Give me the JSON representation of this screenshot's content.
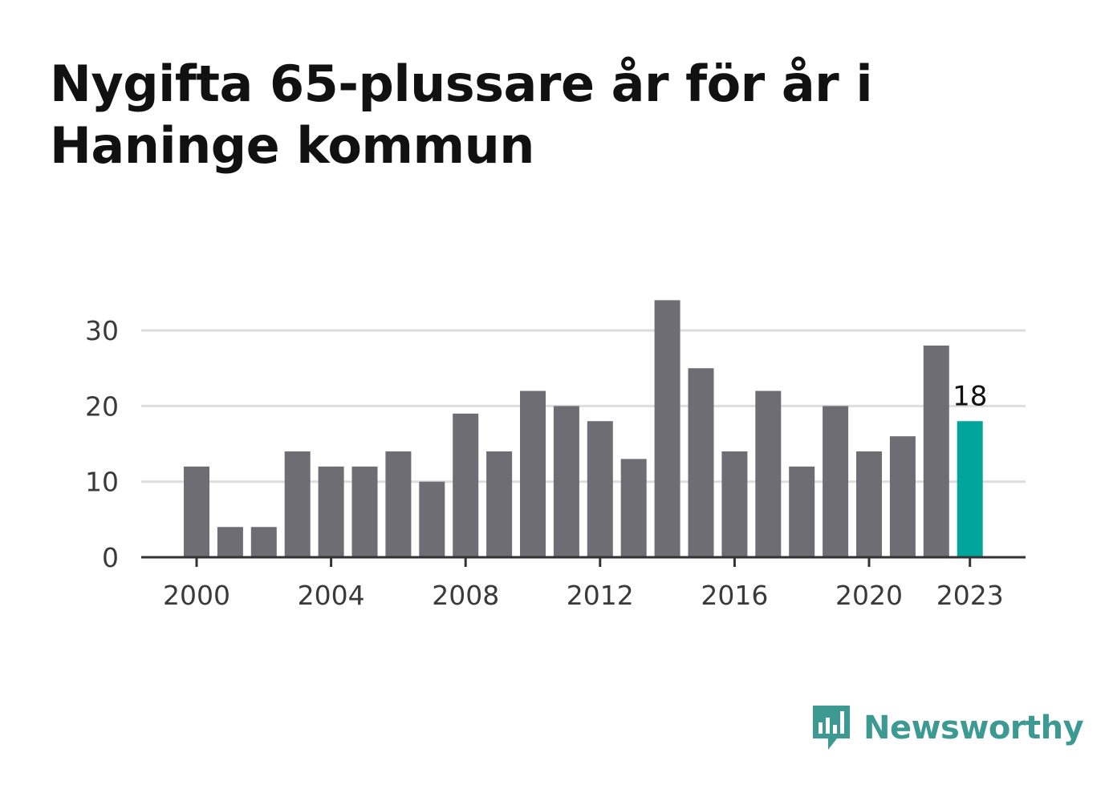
{
  "title": "Nygifta 65-plussare år för år i Haninge kommun",
  "brand": {
    "name": "Newsworthy",
    "icon": "newsworthy-bar-chart-speech-bubble-icon",
    "color": "#3d9a92"
  },
  "colors": {
    "bar": "#6e6d74",
    "highlight": "#00a49a",
    "grid": "#dddddd",
    "axis": "#333333"
  },
  "chart_data": {
    "type": "bar",
    "title": "Nygifta 65-plussare år för år i Haninge kommun",
    "xlabel": "",
    "ylabel": "",
    "categories": [
      2000,
      2001,
      2002,
      2003,
      2004,
      2005,
      2006,
      2007,
      2008,
      2009,
      2010,
      2011,
      2012,
      2013,
      2014,
      2015,
      2016,
      2017,
      2018,
      2019,
      2020,
      2021,
      2022,
      2023
    ],
    "values": [
      12,
      4,
      4,
      14,
      12,
      12,
      14,
      10,
      19,
      14,
      22,
      20,
      18,
      13,
      34,
      25,
      14,
      22,
      12,
      20,
      14,
      16,
      28,
      18
    ],
    "highlight_index": 23,
    "highlight_label": "18",
    "ylim": [
      0,
      35
    ],
    "yticks": [
      0,
      10,
      20,
      30
    ],
    "xticks": [
      "2000",
      "2004",
      "2008",
      "2012",
      "2016",
      "2020",
      "2023"
    ],
    "grid": true,
    "legend": "none"
  }
}
